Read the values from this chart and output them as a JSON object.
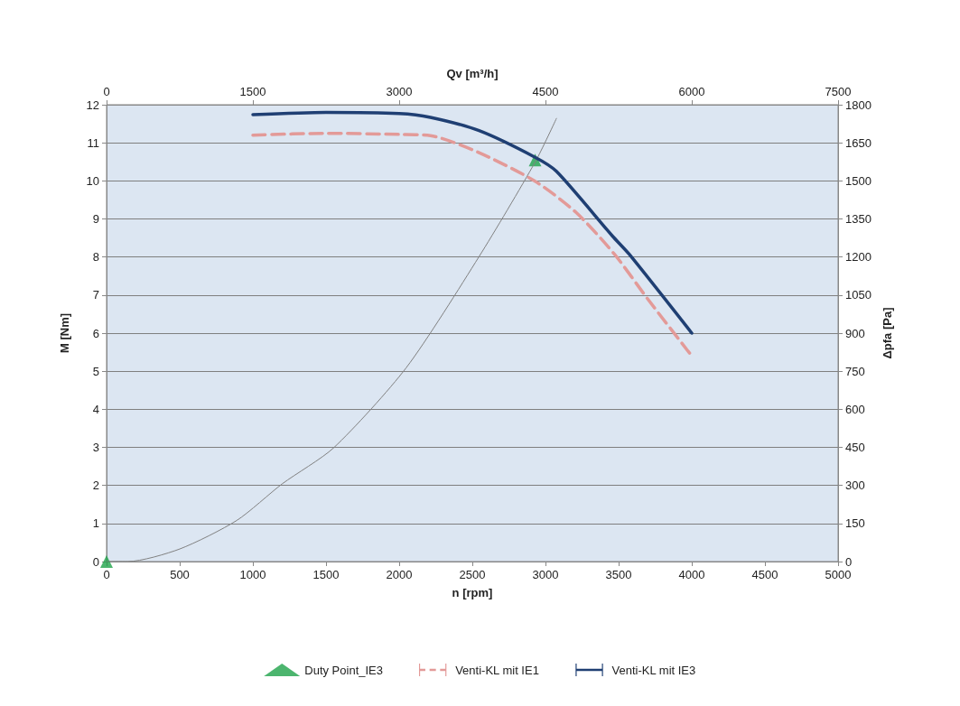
{
  "chart_data": {
    "type": "line",
    "xlabel": "n [rpm]",
    "ylabel": "M [Nm]",
    "x2label": "Qv [m³/h]",
    "y2label": "Δpfa [Pa]",
    "xlim": [
      0,
      5000
    ],
    "xticks": [
      0,
      500,
      1000,
      1500,
      2000,
      2500,
      3000,
      3500,
      4000,
      4500,
      5000
    ],
    "ylim": [
      0,
      12
    ],
    "yticks": [
      0,
      1,
      2,
      3,
      4,
      5,
      6,
      7,
      8,
      9,
      10,
      11,
      12
    ],
    "x2lim": [
      0,
      7500
    ],
    "x2ticks": [
      0,
      1500,
      3000,
      4500,
      6000,
      7500
    ],
    "y2lim": [
      0,
      1800
    ],
    "y2ticks": [
      0,
      150,
      300,
      450,
      600,
      750,
      900,
      1050,
      1200,
      1350,
      1500,
      1650,
      1800
    ],
    "grid": "y",
    "legend": "bottom",
    "series": [
      {
        "color": "#808080",
        "marker": "none",
        "line_style": "solid",
        "x": [
          0,
          144,
          500,
          890,
          1200,
          1553,
          2048,
          2546,
          2929,
          3075
        ],
        "values": [
          0,
          0,
          0.33,
          1.08,
          2.04,
          2.99,
          5.09,
          8.01,
          10.49,
          11.64
        ]
      },
      {
        "type": "scatter",
        "name": "Duty Point_IE3",
        "color": "#1fa34a",
        "marker": "triangle",
        "x": [
          0,
          2929
        ],
        "values": [
          0,
          10.55
        ]
      },
      {
        "name": "Venti-KL mit IE1",
        "color": "#e39a98",
        "marker": "none",
        "line_style": "dashed",
        "x": [
          1000,
          1500,
          2000,
          2213,
          2546,
          2929,
          3209,
          3472,
          3704,
          4000
        ],
        "values": [
          11.2,
          11.25,
          11.22,
          11.19,
          10.74,
          9.99,
          9.17,
          8.07,
          6.87,
          5.4
        ]
      },
      {
        "name": "Venti-KL mit IE3",
        "color": "#1f3f73",
        "marker": "none",
        "line_style": "solid",
        "x": [
          1000,
          1500,
          2000,
          2213,
          2546,
          2929,
          3075,
          3458,
          3573,
          4000
        ],
        "values": [
          11.74,
          11.8,
          11.77,
          11.67,
          11.32,
          10.62,
          10.25,
          8.55,
          8.07,
          6.0
        ]
      }
    ]
  }
}
